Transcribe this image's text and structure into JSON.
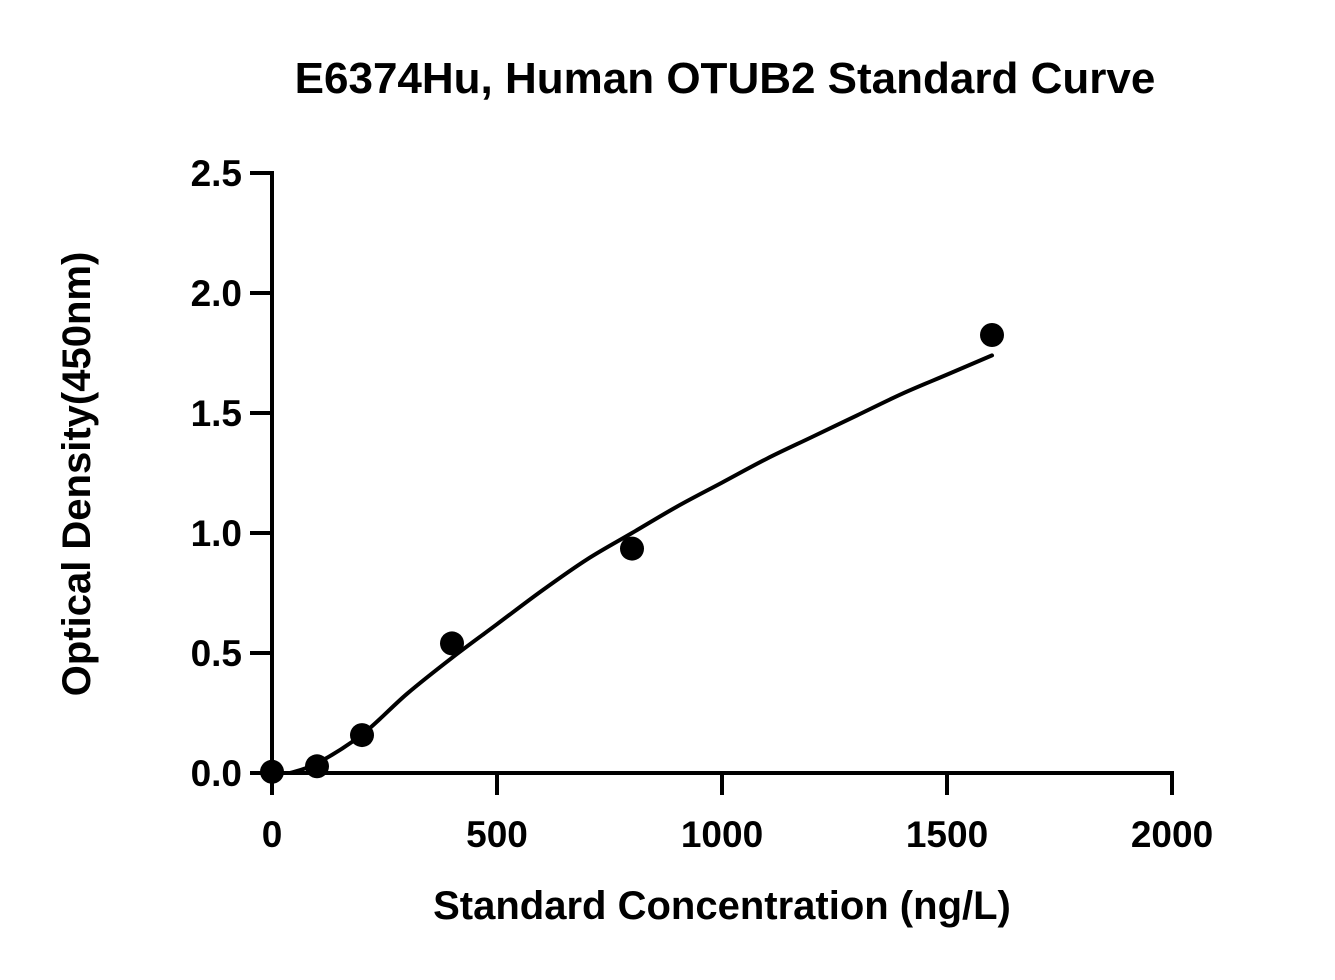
{
  "chart_data": {
    "type": "scatter",
    "title": "E6374Hu, Human OTUB2 Standard Curve",
    "xlabel": "Standard Concentration (ng/L)",
    "ylabel": "Optical Density(450nm)",
    "xlim": [
      0,
      2000
    ],
    "ylim": [
      0,
      2.5
    ],
    "xticks": [
      0,
      500,
      1000,
      1500,
      2000
    ],
    "xtick_labels": [
      "0",
      "500",
      "1000",
      "1500",
      "2000"
    ],
    "yticks": [
      0,
      0.5,
      1.0,
      1.5,
      2.0,
      2.5
    ],
    "ytick_labels": [
      "0.0",
      "0.5",
      "1.0",
      "1.5",
      "2.0",
      "2.5"
    ],
    "grid": false,
    "legend": "none",
    "series": [
      {
        "marker": "circle",
        "color": "#000000",
        "x": [
          0,
          100,
          200,
          400,
          800,
          1600
        ],
        "y": [
          0.005,
          0.028,
          0.158,
          0.54,
          0.935,
          1.825
        ]
      }
    ],
    "fit_curve": {
      "color": "#000000",
      "x": [
        40,
        100,
        200,
        300,
        400,
        500,
        600,
        700,
        800,
        900,
        1000,
        1100,
        1200,
        1300,
        1400,
        1500,
        1600
      ],
      "y": [
        0.0,
        0.04,
        0.16,
        0.33,
        0.48,
        0.62,
        0.76,
        0.89,
        1.0,
        1.11,
        1.21,
        1.31,
        1.4,
        1.49,
        1.58,
        1.66,
        1.74
      ]
    }
  }
}
